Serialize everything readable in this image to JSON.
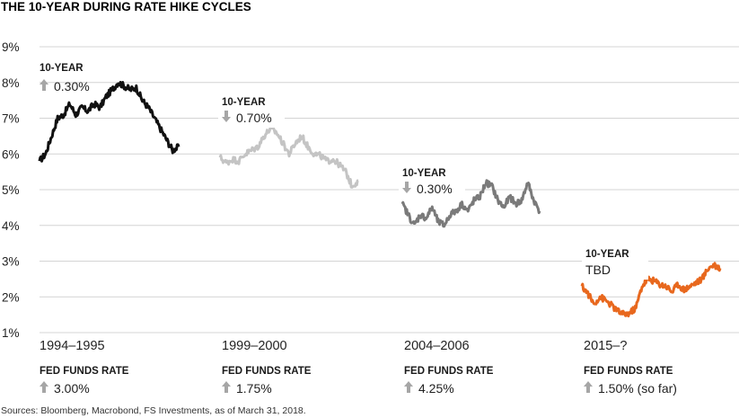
{
  "chart_data": {
    "type": "line",
    "title": "THE 10-YEAR DURING RATE HIKE CYCLES",
    "ylim": [
      1,
      9
    ],
    "yticks": [
      "9%",
      "8%",
      "7%",
      "6%",
      "5%",
      "4%",
      "3%",
      "2%",
      "1%"
    ],
    "ytick_values": [
      9,
      8,
      7,
      6,
      5,
      4,
      3,
      2,
      1
    ],
    "grid": true,
    "panels": [
      {
        "period": "1994–1995",
        "line_color": "#111111",
        "ten_year_label": "10-YEAR",
        "ten_year_direction": "up",
        "ten_year_change": "0.30%",
        "fed_funds_label": "FED FUNDS RATE",
        "fed_funds_direction": "up",
        "fed_funds_change": "3.00%",
        "values": [
          5.8,
          6.0,
          6.5,
          7.0,
          7.1,
          7.4,
          7.1,
          7.3,
          7.2,
          7.4,
          7.3,
          7.6,
          7.8,
          8.0,
          7.9,
          7.8,
          7.85,
          7.5,
          7.3,
          7.0,
          6.7,
          6.4,
          6.1,
          6.2
        ]
      },
      {
        "period": "1999–2000",
        "line_color": "#c4c4c4",
        "ten_year_label": "10-YEAR",
        "ten_year_direction": "down",
        "ten_year_change": "0.70%",
        "fed_funds_label": "FED FUNDS RATE",
        "fed_funds_direction": "up",
        "fed_funds_change": "1.75%",
        "values": [
          5.9,
          5.75,
          5.85,
          5.8,
          6.0,
          6.1,
          6.2,
          6.5,
          6.7,
          6.6,
          6.3,
          6.0,
          6.3,
          6.5,
          6.2,
          6.0,
          5.95,
          5.8,
          5.85,
          5.7,
          5.5,
          5.1,
          5.25
        ]
      },
      {
        "period": "2004–2006",
        "line_color": "#7a7a7a",
        "ten_year_label": "10-YEAR",
        "ten_year_direction": "down",
        "ten_year_change": "0.30%",
        "fed_funds_label": "FED FUNDS RATE",
        "fed_funds_direction": "up",
        "fed_funds_change": "4.25%",
        "values": [
          4.6,
          4.3,
          4.0,
          4.3,
          4.2,
          4.5,
          4.1,
          4.0,
          4.3,
          4.4,
          4.6,
          4.4,
          4.7,
          4.8,
          5.2,
          5.1,
          4.7,
          4.5,
          4.8,
          4.6,
          4.7,
          5.2,
          4.7,
          4.4
        ]
      },
      {
        "period": "2015–?",
        "line_color": "#e8681e",
        "ten_year_label": "10-YEAR",
        "ten_year_direction": "",
        "ten_year_change": "TBD",
        "fed_funds_label": "FED FUNDS RATE",
        "fed_funds_direction": "up",
        "fed_funds_change": "1.50% (so far)",
        "values": [
          2.3,
          2.1,
          1.8,
          2.0,
          1.9,
          1.75,
          1.6,
          1.5,
          1.55,
          1.7,
          2.3,
          2.5,
          2.45,
          2.35,
          2.3,
          2.15,
          2.35,
          2.2,
          2.3,
          2.4,
          2.5,
          2.8,
          2.9,
          2.8
        ]
      }
    ]
  },
  "source": "Sources: Bloomberg, Macrobond, FS Investments, as of March 31, 2018."
}
